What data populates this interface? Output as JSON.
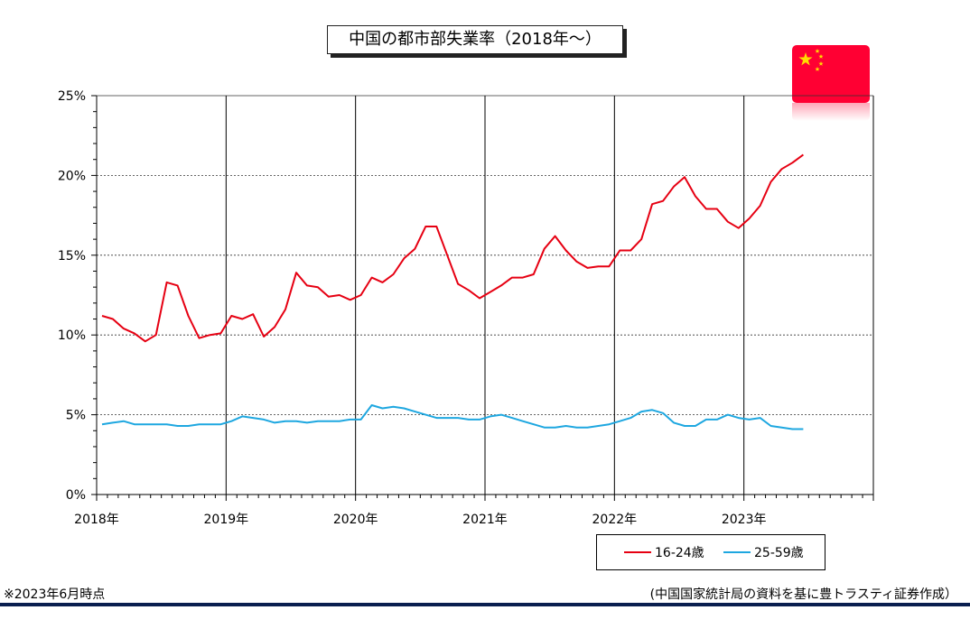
{
  "title": "中国の都市部失業率（2018年～）",
  "footnote_left": "※2023年6月時点",
  "footnote_right": "(中国国家統計局の資料を基に豊トラスティ証券作成）",
  "colors": {
    "series_16_24": "#e60012",
    "series_25_59": "#1ea7e0",
    "flag_red": "#ff0033",
    "flag_star": "#ffdd00",
    "bottom_rule": "#0a1f4f"
  },
  "chart_data": {
    "type": "line",
    "x_start": "2018-01",
    "x_end": "2023-12",
    "x_tick_labels": [
      "2018年",
      "2019年",
      "2020年",
      "2021年",
      "2022年",
      "2023年"
    ],
    "y_tick_labels": [
      "0%",
      "5%",
      "10%",
      "15%",
      "20%",
      "25%"
    ],
    "ylim": [
      0,
      25
    ],
    "grid": "horizontal dashed at 5% steps; vertical solid at each January",
    "legend_placement": "bottom-right",
    "series": [
      {
        "name": "16-24歳",
        "months": [
          "2018-01",
          "2018-02",
          "2018-03",
          "2018-04",
          "2018-05",
          "2018-06",
          "2018-07",
          "2018-08",
          "2018-09",
          "2018-10",
          "2018-11",
          "2018-12",
          "2019-01",
          "2019-02",
          "2019-03",
          "2019-04",
          "2019-05",
          "2019-06",
          "2019-07",
          "2019-08",
          "2019-09",
          "2019-10",
          "2019-11",
          "2019-12",
          "2020-01",
          "2020-02",
          "2020-03",
          "2020-04",
          "2020-05",
          "2020-06",
          "2020-07",
          "2020-08",
          "2020-09",
          "2020-10",
          "2020-11",
          "2020-12",
          "2021-01",
          "2021-02",
          "2021-03",
          "2021-04",
          "2021-05",
          "2021-06",
          "2021-07",
          "2021-08",
          "2021-09",
          "2021-10",
          "2021-11",
          "2021-12",
          "2022-01",
          "2022-02",
          "2022-03",
          "2022-04",
          "2022-05",
          "2022-06",
          "2022-07",
          "2022-08",
          "2022-09",
          "2022-10",
          "2022-11",
          "2022-12",
          "2023-01",
          "2023-02",
          "2023-03",
          "2023-04",
          "2023-05",
          "2023-06"
        ],
        "values": [
          11.2,
          11.0,
          10.4,
          10.1,
          9.6,
          10.0,
          13.3,
          13.1,
          11.2,
          9.8,
          10.0,
          10.1,
          11.2,
          11.0,
          11.3,
          9.9,
          10.5,
          11.6,
          13.9,
          13.1,
          13.0,
          12.4,
          12.5,
          12.2,
          12.5,
          13.6,
          13.3,
          13.8,
          14.8,
          15.4,
          16.8,
          16.8,
          15.0,
          13.2,
          12.8,
          12.3,
          12.7,
          13.1,
          13.6,
          13.6,
          13.8,
          15.4,
          16.2,
          15.3,
          14.6,
          14.2,
          14.3,
          14.3,
          15.3,
          15.3,
          16.0,
          18.2,
          18.4,
          19.3,
          19.9,
          18.7,
          17.9,
          17.9,
          17.1,
          16.7,
          17.3,
          18.1,
          19.6,
          20.4,
          20.8,
          21.3
        ]
      },
      {
        "name": "25-59歳",
        "months": [
          "2018-01",
          "2018-02",
          "2018-03",
          "2018-04",
          "2018-05",
          "2018-06",
          "2018-07",
          "2018-08",
          "2018-09",
          "2018-10",
          "2018-11",
          "2018-12",
          "2019-01",
          "2019-02",
          "2019-03",
          "2019-04",
          "2019-05",
          "2019-06",
          "2019-07",
          "2019-08",
          "2019-09",
          "2019-10",
          "2019-11",
          "2019-12",
          "2020-01",
          "2020-02",
          "2020-03",
          "2020-04",
          "2020-05",
          "2020-06",
          "2020-07",
          "2020-08",
          "2020-09",
          "2020-10",
          "2020-11",
          "2020-12",
          "2021-01",
          "2021-02",
          "2021-03",
          "2021-04",
          "2021-05",
          "2021-06",
          "2021-07",
          "2021-08",
          "2021-09",
          "2021-10",
          "2021-11",
          "2021-12",
          "2022-01",
          "2022-02",
          "2022-03",
          "2022-04",
          "2022-05",
          "2022-06",
          "2022-07",
          "2022-08",
          "2022-09",
          "2022-10",
          "2022-11",
          "2022-12",
          "2023-01",
          "2023-02",
          "2023-03",
          "2023-04",
          "2023-05",
          "2023-06"
        ],
        "values": [
          4.4,
          4.5,
          4.6,
          4.4,
          4.4,
          4.4,
          4.4,
          4.3,
          4.3,
          4.4,
          4.4,
          4.4,
          4.6,
          4.9,
          4.8,
          4.7,
          4.5,
          4.6,
          4.6,
          4.5,
          4.6,
          4.6,
          4.6,
          4.7,
          4.7,
          5.6,
          5.4,
          5.5,
          5.4,
          5.2,
          5.0,
          4.8,
          4.8,
          4.8,
          4.7,
          4.7,
          4.9,
          5.0,
          4.8,
          4.6,
          4.4,
          4.2,
          4.2,
          4.3,
          4.2,
          4.2,
          4.3,
          4.4,
          4.6,
          4.8,
          5.2,
          5.3,
          5.1,
          4.5,
          4.3,
          4.3,
          4.7,
          4.7,
          5.0,
          4.8,
          4.7,
          4.8,
          4.3,
          4.2,
          4.1,
          4.1
        ]
      }
    ]
  }
}
